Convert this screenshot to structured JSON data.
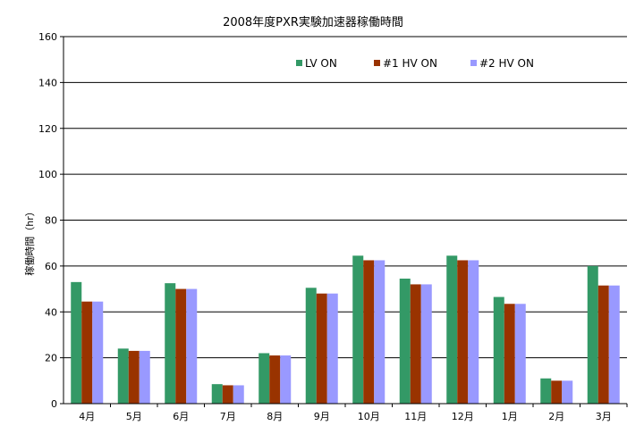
{
  "chart_data": {
    "type": "bar",
    "title": "2008年度PXR実験加速器稼働時間",
    "xlabel": "",
    "ylabel": "稼働時間（hr）",
    "ylim": [
      0,
      160
    ],
    "yticks": [
      "0",
      "20",
      "40",
      "60",
      "80",
      "100",
      "120",
      "140",
      "160"
    ],
    "grid": true,
    "legend_position": "top-right",
    "categories": [
      "4月",
      "5月",
      "6月",
      "7月",
      "8月",
      "9月",
      "10月",
      "11月",
      "12月",
      "1月",
      "2月",
      "3月"
    ],
    "series": [
      {
        "name": "LV ON",
        "color": "#339966",
        "values": [
          53,
          24,
          52.5,
          8.5,
          22,
          50.5,
          64.5,
          54.5,
          64.5,
          46.5,
          11,
          60
        ]
      },
      {
        "name": "#1  HV ON",
        "color": "#993300",
        "values": [
          44.5,
          23,
          50,
          8,
          21,
          48,
          62.5,
          52,
          62.5,
          43.5,
          10,
          51.5
        ]
      },
      {
        "name": "#2  HV ON",
        "color": "#9999ff",
        "values": [
          44.5,
          23,
          50,
          8,
          21,
          48,
          62.5,
          52,
          62.5,
          43.5,
          10,
          51.5
        ]
      }
    ]
  }
}
